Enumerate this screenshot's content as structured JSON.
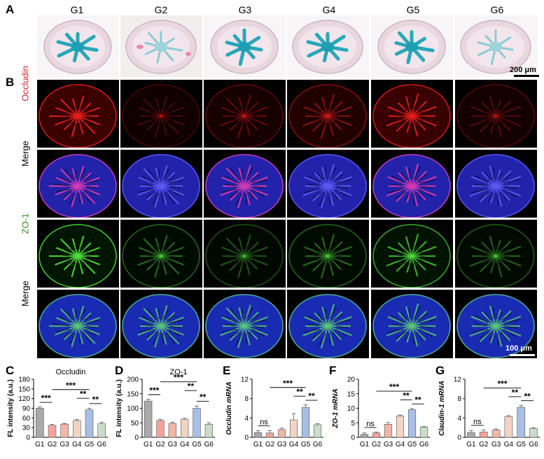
{
  "panel_letters": [
    "A",
    "B",
    "C",
    "D",
    "E",
    "F",
    "G"
  ],
  "groups": [
    "G1",
    "G2",
    "G3",
    "G4",
    "G5",
    "G6"
  ],
  "row_labels": [
    "Occludin",
    "Merge",
    "ZO-1",
    "Merge"
  ],
  "row_label_colors": [
    "#d0262a",
    "#000000",
    "#3a8a1f",
    "#000000"
  ],
  "scalebars": {
    "a": "200 μm",
    "b": "100 μm"
  },
  "colors": {
    "G1": "#a9a9a9",
    "G2": "#f2a49c",
    "G3": "#f1b7a8",
    "G4": "#f2d3c4",
    "G5": "#a8bfe8",
    "G6": "#c9ddc9"
  },
  "chart_data": [
    {
      "type": "bar",
      "title": "Occludin",
      "ylabel": "FL intensity (a.u.)",
      "categories": [
        "G1",
        "G2",
        "G3",
        "G4",
        "G5",
        "G6"
      ],
      "values": [
        90,
        37,
        41,
        52,
        85,
        42
      ],
      "errors": [
        4,
        3,
        2,
        3,
        5,
        5
      ],
      "ylim": [
        0,
        180
      ],
      "yticks": [
        0,
        30,
        60,
        90,
        120,
        150,
        180
      ],
      "sig": [
        {
          "from": 0,
          "to": 1,
          "label": "***",
          "level": 0
        },
        {
          "from": 1,
          "to": 4,
          "label": "***",
          "level": 2
        },
        {
          "from": 3,
          "to": 4,
          "label": "**",
          "level": 1
        },
        {
          "from": 4,
          "to": 5,
          "label": "**",
          "level": 0
        }
      ]
    },
    {
      "type": "bar",
      "title": "ZO-1",
      "ylabel": "FL intensity (a.u.)",
      "categories": [
        "G1",
        "G2",
        "G3",
        "G4",
        "G5",
        "G6"
      ],
      "values": [
        125,
        58,
        48,
        62,
        100,
        45
      ],
      "errors": [
        6,
        4,
        4,
        4,
        8,
        5
      ],
      "ylim": [
        0,
        200
      ],
      "yticks": [
        0,
        50,
        100,
        150,
        200
      ],
      "sig": [
        {
          "from": 0,
          "to": 1,
          "label": "***",
          "level": 0
        },
        {
          "from": 1,
          "to": 4,
          "label": "***",
          "level": 2
        },
        {
          "from": 3,
          "to": 4,
          "label": "**",
          "level": 1
        },
        {
          "from": 4,
          "to": 5,
          "label": "**",
          "level": 0
        }
      ]
    },
    {
      "type": "bar",
      "title": "",
      "ylabel": "Occludin mRNA",
      "categories": [
        "G1",
        "G2",
        "G3",
        "G4",
        "G5",
        "G6"
      ],
      "values": [
        1.0,
        0.9,
        1.6,
        3.6,
        6.2,
        2.6
      ],
      "errors": [
        0.4,
        0.5,
        0.3,
        1.3,
        0.5,
        0.2
      ],
      "ylim": [
        0,
        12
      ],
      "yticks": [
        0,
        4,
        8,
        12
      ],
      "sig": [
        {
          "from": 0,
          "to": 1,
          "label": "ns",
          "level": 0
        },
        {
          "from": 1,
          "to": 4,
          "label": "***",
          "level": 2
        },
        {
          "from": 3,
          "to": 4,
          "label": "**",
          "level": 1
        },
        {
          "from": 4,
          "to": 5,
          "label": "**",
          "level": 0
        }
      ]
    },
    {
      "type": "bar",
      "title": "",
      "ylabel": "ZO-1 mRNA",
      "categories": [
        "G1",
        "G2",
        "G3",
        "G4",
        "G5",
        "G6"
      ],
      "values": [
        1.0,
        1.5,
        4.5,
        7.4,
        9.5,
        3.5
      ],
      "errors": [
        0.5,
        0.3,
        0.6,
        0.3,
        0.4,
        0.2
      ],
      "ylim": [
        0,
        20
      ],
      "yticks": [
        0,
        5,
        10,
        15,
        20
      ],
      "sig": [
        {
          "from": 0,
          "to": 1,
          "label": "ns",
          "level": 0
        },
        {
          "from": 1,
          "to": 4,
          "label": "***",
          "level": 2
        },
        {
          "from": 3,
          "to": 4,
          "label": "**",
          "level": 1
        },
        {
          "from": 4,
          "to": 5,
          "label": "**",
          "level": 0
        }
      ]
    },
    {
      "type": "bar",
      "title": "",
      "ylabel": "Claudin-1 mRNA",
      "categories": [
        "G1",
        "G2",
        "G3",
        "G4",
        "G5",
        "G6"
      ],
      "values": [
        1.0,
        1.1,
        1.5,
        4.3,
        6.2,
        1.8
      ],
      "errors": [
        0.4,
        0.4,
        0.2,
        0.2,
        0.4,
        0.2
      ],
      "ylim": [
        0,
        12
      ],
      "yticks": [
        0,
        4,
        8,
        12
      ],
      "sig": [
        {
          "from": 0,
          "to": 1,
          "label": "ns",
          "level": 0
        },
        {
          "from": 1,
          "to": 4,
          "label": "***",
          "level": 2
        },
        {
          "from": 3,
          "to": 4,
          "label": "**",
          "level": 1
        },
        {
          "from": 4,
          "to": 5,
          "label": "**",
          "level": 0
        }
      ]
    }
  ]
}
